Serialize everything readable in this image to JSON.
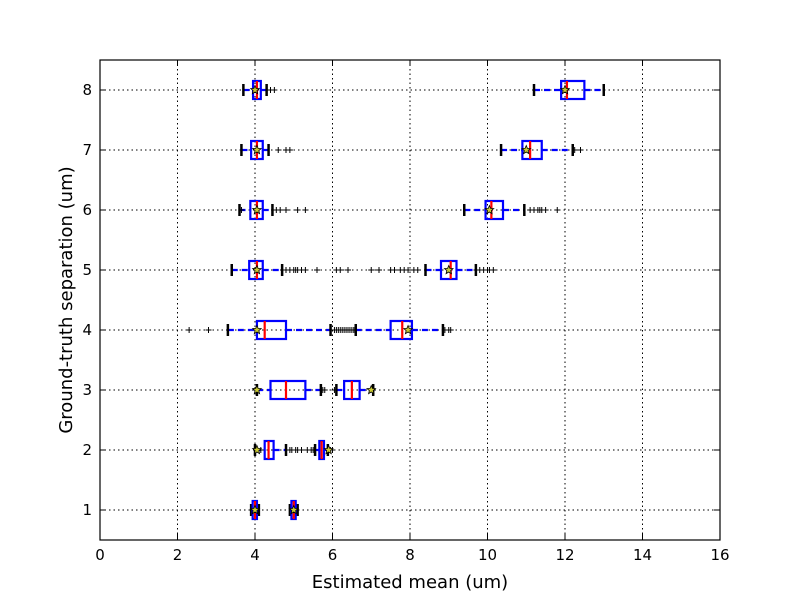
{
  "chart_data": {
    "type": "boxplot",
    "orientation": "horizontal",
    "xlabel": "Estimated mean (um)",
    "ylabel": "Ground-truth separation (um)",
    "xlim": [
      0,
      16
    ],
    "ylim": [
      0.5,
      8.5
    ],
    "xticks": [
      0,
      2,
      4,
      6,
      8,
      10,
      12,
      14,
      16
    ],
    "yticks": [
      1,
      2,
      3,
      4,
      5,
      6,
      7,
      8
    ],
    "grid": true,
    "colors": {
      "box": "#0000ff",
      "median": "#ff0000",
      "mean_marker": "#cccc33",
      "cap": "#000000"
    },
    "groups": [
      {
        "separation": 1,
        "boxes": [
          {
            "whislo": 3.9,
            "q1": 3.94,
            "med": 4.0,
            "q3": 4.05,
            "whishi": 4.1,
            "mean": 4.0,
            "fliers": []
          },
          {
            "whislo": 4.9,
            "q1": 4.94,
            "med": 5.0,
            "q3": 5.05,
            "whishi": 5.1,
            "mean": 5.0,
            "fliers": []
          }
        ]
      },
      {
        "separation": 2,
        "boxes": [
          {
            "whislo": 4.0,
            "q1": 4.25,
            "med": 4.35,
            "q3": 4.48,
            "whishi": 4.8,
            "mean": 4.05,
            "fliers": [
              4.15,
              4.9,
              4.95,
              5.05,
              5.1,
              5.2,
              5.35
            ]
          },
          {
            "whislo": 5.55,
            "q1": 5.66,
            "med": 5.72,
            "q3": 5.78,
            "whishi": 5.88,
            "mean": 5.9,
            "fliers": [
              5.45,
              5.5,
              5.95,
              6.0
            ]
          }
        ]
      },
      {
        "separation": 3,
        "boxes": [
          {
            "whislo": 4.05,
            "q1": 4.4,
            "med": 4.8,
            "q3": 5.3,
            "whishi": 5.7,
            "mean": 4.05,
            "fliers": [
              4.0,
              5.75,
              5.8,
              6.05
            ]
          },
          {
            "whislo": 6.1,
            "q1": 6.3,
            "med": 6.5,
            "q3": 6.7,
            "whishi": 7.05,
            "mean": 7.0,
            "fliers": []
          }
        ]
      },
      {
        "separation": 4,
        "boxes": [
          {
            "whislo": 3.3,
            "q1": 4.05,
            "med": 4.25,
            "q3": 4.8,
            "whishi": 5.95,
            "mean": 4.05,
            "fliers": [
              2.3,
              2.8,
              6.05,
              6.1,
              6.15,
              6.2,
              6.25,
              6.3,
              6.35,
              6.4,
              6.45,
              6.5,
              6.55
            ]
          },
          {
            "whislo": 6.6,
            "q1": 7.5,
            "med": 7.8,
            "q3": 8.05,
            "whishi": 8.85,
            "mean": 7.95,
            "fliers": [
              8.9,
              9.0,
              9.05
            ]
          }
        ]
      },
      {
        "separation": 5,
        "boxes": [
          {
            "whislo": 3.4,
            "q1": 3.85,
            "med": 4.05,
            "q3": 4.2,
            "whishi": 4.7,
            "mean": 4.05,
            "fliers": [
              4.8,
              4.9,
              5.0,
              5.05,
              5.1,
              5.2,
              5.3,
              5.6,
              6.1,
              6.2,
              6.4,
              7.0,
              7.2,
              7.5,
              7.6,
              7.75,
              7.85,
              7.95,
              8.1,
              8.2
            ]
          },
          {
            "whislo": 8.4,
            "q1": 8.8,
            "med": 9.05,
            "q3": 9.2,
            "whishi": 9.7,
            "mean": 9.0,
            "fliers": [
              9.8,
              9.9,
              10.0,
              10.05,
              10.15
            ]
          }
        ]
      },
      {
        "separation": 6,
        "boxes": [
          {
            "whislo": 3.6,
            "q1": 3.88,
            "med": 4.05,
            "q3": 4.2,
            "whishi": 4.45,
            "mean": 4.05,
            "fliers": [
              3.65,
              4.55,
              4.65,
              4.8,
              5.1,
              5.3
            ]
          },
          {
            "whislo": 9.4,
            "q1": 9.95,
            "med": 10.1,
            "q3": 10.4,
            "whishi": 10.95,
            "mean": 10.05,
            "fliers": [
              11.1,
              11.2,
              11.3,
              11.35,
              11.4,
              11.5,
              11.8
            ]
          }
        ]
      },
      {
        "separation": 7,
        "boxes": [
          {
            "whislo": 3.65,
            "q1": 3.9,
            "med": 4.05,
            "q3": 4.2,
            "whishi": 4.35,
            "mean": 4.05,
            "fliers": [
              4.6,
              4.8,
              4.9
            ]
          },
          {
            "whislo": 10.35,
            "q1": 10.9,
            "med": 11.1,
            "q3": 11.4,
            "whishi": 12.2,
            "mean": 11.0,
            "fliers": [
              12.25,
              12.4
            ]
          }
        ]
      },
      {
        "separation": 8,
        "boxes": [
          {
            "whislo": 3.7,
            "q1": 3.95,
            "med": 4.05,
            "q3": 4.15,
            "whishi": 4.3,
            "mean": 4.0,
            "fliers": [
              4.4,
              4.5
            ]
          },
          {
            "whislo": 11.2,
            "q1": 11.9,
            "med": 12.05,
            "q3": 12.5,
            "whishi": 13.0,
            "mean": 12.0,
            "fliers": []
          }
        ]
      }
    ]
  }
}
